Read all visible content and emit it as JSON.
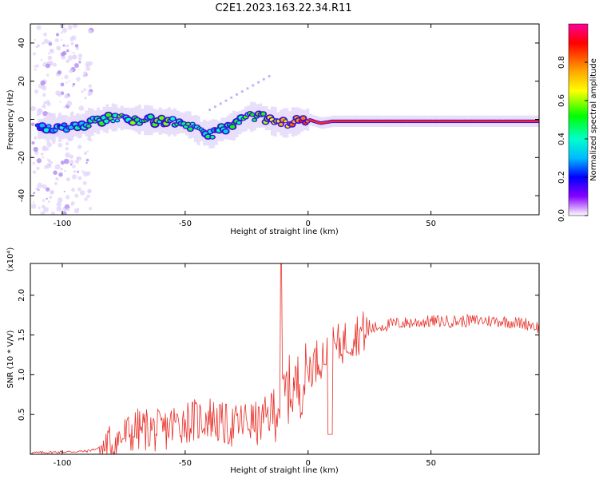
{
  "title": "C2E1.2023.163.22.34.R11",
  "chart_data": [
    {
      "type": "heatmap",
      "xlabel": "Height of straight line (km)",
      "ylabel": "Frequency (Hz)",
      "xlim": [
        -113,
        94
      ],
      "ylim": [
        -50,
        50
      ],
      "x_ticks": [
        -100,
        -50,
        0,
        50
      ],
      "y_ticks": [
        -40,
        -20,
        0,
        20,
        40
      ],
      "colorbar": {
        "label": "Normalized spectral amplitude",
        "range": [
          0,
          1
        ],
        "ticks": [
          "0.0",
          "0.2",
          "0.4",
          "0.6",
          "0.8"
        ],
        "colors": [
          "#ff0099",
          "#ff0000",
          "#ffaa00",
          "#ffff00",
          "#00ff00",
          "#00ffcc",
          "#00bbff",
          "#0000ff",
          "#8800ff",
          "#ffffff"
        ]
      },
      "ridge": {
        "x": [
          -110,
          -100,
          -90,
          -80,
          -70,
          -60,
          -50,
          -45,
          -40,
          -35,
          -30,
          -25,
          -20,
          -15,
          -10,
          -5,
          0,
          5,
          10,
          20,
          30,
          50,
          70,
          94
        ],
        "freq": [
          -5,
          -4,
          -2,
          1,
          0,
          -1,
          -2,
          -6,
          -8,
          -5,
          -3,
          1,
          2,
          -1,
          -2,
          -1,
          0,
          -2,
          -1,
          -1,
          -1,
          -1,
          -1,
          -1
        ],
        "amplitude": [
          0.3,
          0.3,
          0.4,
          0.5,
          0.5,
          0.5,
          0.45,
          0.45,
          0.4,
          0.4,
          0.45,
          0.5,
          0.55,
          0.6,
          0.7,
          0.8,
          0.85,
          0.85,
          0.88,
          0.9,
          0.9,
          0.95,
          0.95,
          0.9
        ]
      }
    },
    {
      "type": "line",
      "xlabel": "Height of straight line (km)",
      "ylabel": "SNR (10 * V/V)",
      "y_multiplier": "(x10⁴)",
      "xlim": [
        -113,
        94
      ],
      "ylim": [
        0,
        2.4
      ],
      "x_ticks": [
        -100,
        -50,
        0,
        50
      ],
      "y_ticks": [
        "0.5",
        "1.0",
        "1.5",
        "2.0"
      ],
      "color": "#e8312a",
      "series": [
        {
          "x": [
            -113,
            -100,
            -90,
            -85,
            -80,
            -75,
            -70,
            -65,
            -60,
            -55,
            -50,
            -45,
            -40,
            -35,
            -30,
            -25,
            -20,
            -15,
            -12,
            -10,
            -8,
            -5,
            -2,
            0,
            3,
            5,
            8,
            10,
            15,
            20,
            25,
            30,
            35,
            40,
            50,
            60,
            70,
            80,
            85,
            90,
            94
          ],
          "values": [
            0.02,
            0.03,
            0.04,
            0.08,
            0.15,
            0.25,
            0.33,
            0.35,
            0.3,
            0.4,
            0.45,
            0.45,
            0.5,
            0.4,
            0.38,
            0.45,
            0.4,
            0.55,
            0.7,
            0.8,
            0.85,
            0.9,
            0.95,
            1.1,
            1.2,
            1.25,
            1.3,
            1.35,
            1.45,
            1.55,
            1.58,
            1.62,
            1.65,
            1.66,
            1.68,
            1.68,
            1.69,
            1.68,
            1.66,
            1.65,
            1.6
          ]
        }
      ]
    }
  ]
}
